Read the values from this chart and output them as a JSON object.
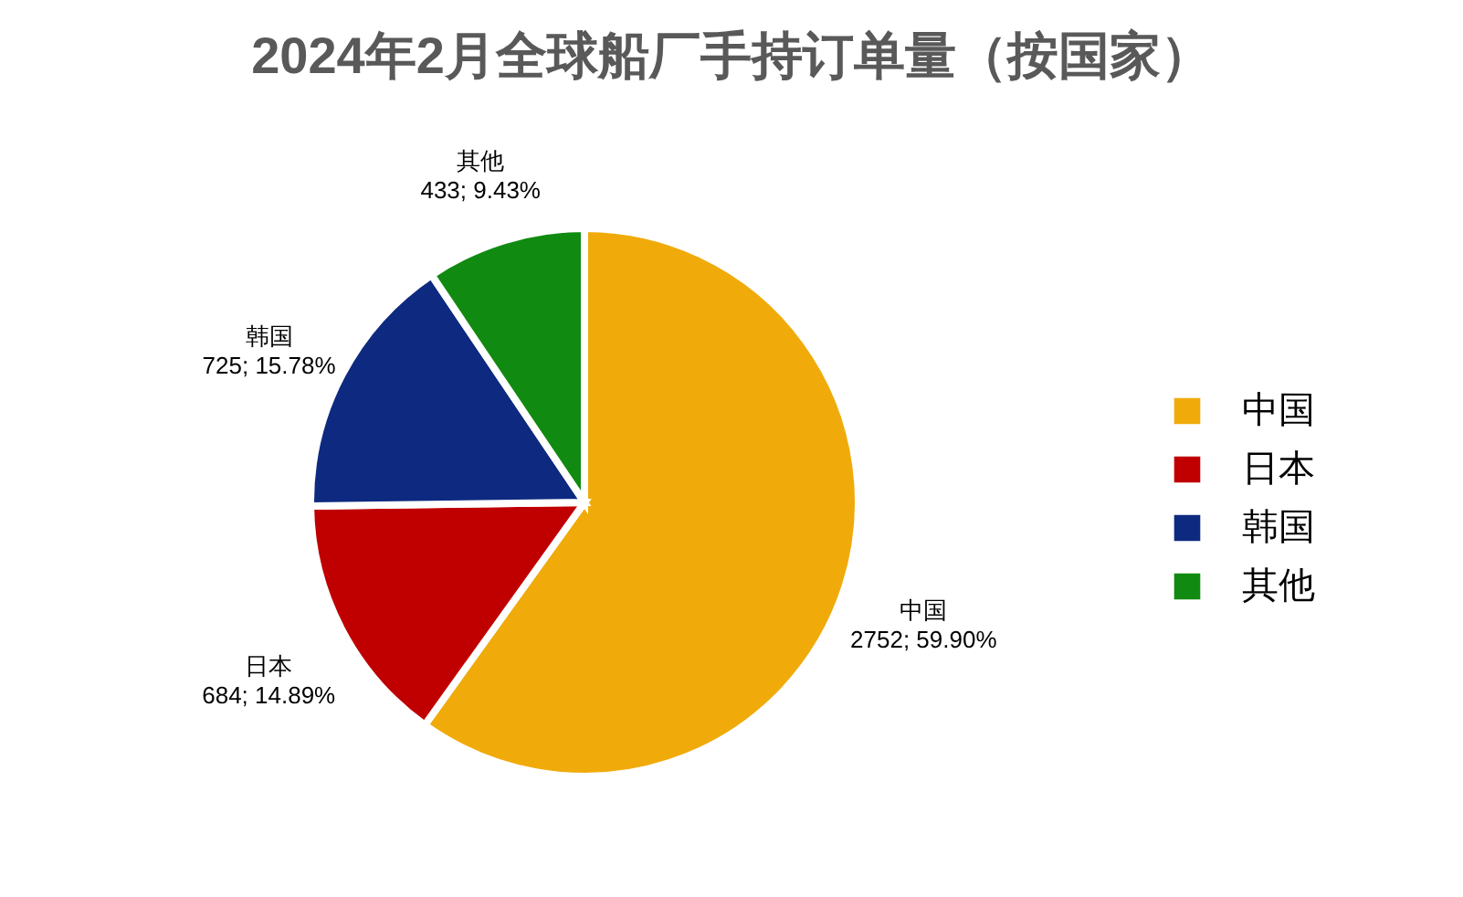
{
  "chart_data": {
    "type": "pie",
    "title": "2024年2月全球船厂手持订单量（按国家）",
    "categories": [
      "中国",
      "日本",
      "韩国",
      "其他"
    ],
    "values": [
      2752,
      684,
      725,
      433
    ],
    "value_labels": [
      "2752; 59.90%",
      "684; 14.89%",
      "725; 15.78%",
      "433; 9.43%"
    ],
    "colors": [
      "#f0ab0b",
      "#c00000",
      "#0e2a80",
      "#108a10"
    ],
    "legend": "right"
  }
}
